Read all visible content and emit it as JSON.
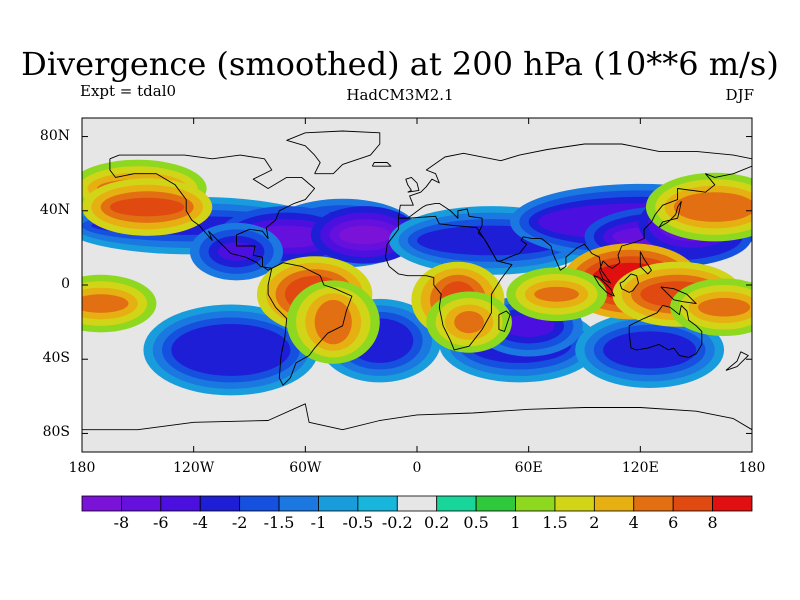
{
  "title": "Divergence (smoothed) at 200 hPa (10**6 m/s)",
  "subtitle_left": "Expt = tdal0",
  "subtitle_center": "HadCM3M2.1",
  "subtitle_right": "DJF",
  "map": {
    "projection": "cylindrical-equidistant",
    "lon_range": [
      -180,
      180
    ],
    "lat_range": [
      -90,
      90
    ],
    "background": "#e6e6e6",
    "lat_ticks": [
      {
        "value": 80,
        "label": "80N"
      },
      {
        "value": 40,
        "label": "40N"
      },
      {
        "value": 0,
        "label": "0"
      },
      {
        "value": -40,
        "label": "40S"
      },
      {
        "value": -80,
        "label": "80S"
      }
    ],
    "lon_ticks": [
      {
        "value": -180,
        "label": "180"
      },
      {
        "value": -120,
        "label": "120W"
      },
      {
        "value": -60,
        "label": "60W"
      },
      {
        "value": 0,
        "label": "0"
      },
      {
        "value": 60,
        "label": "60E"
      },
      {
        "value": 120,
        "label": "120E"
      },
      {
        "value": 180,
        "label": "180"
      }
    ]
  },
  "colorbar": {
    "colors": [
      "#7a12d8",
      "#6510dc",
      "#4b10e0",
      "#1e1ed6",
      "#1550de",
      "#1a78e0",
      "#199cdc",
      "#18b6dc",
      "#e6e6e6",
      "#18d69a",
      "#30c83c",
      "#8ed820",
      "#d2d418",
      "#e6b012",
      "#e27012",
      "#e04a10",
      "#e01010"
    ],
    "labels": [
      "-8",
      "-6",
      "-4",
      "-2",
      "-1.5",
      "-1",
      "-0.5",
      "-0.2",
      "0.2",
      "0.5",
      "1",
      "1.5",
      "2",
      "4",
      "6",
      "8"
    ]
  },
  "fields": [
    {
      "lon": -120,
      "lat": 32,
      "rx": 55,
      "ry": 5,
      "cls": 3
    },
    {
      "lon": -40,
      "lat": 28,
      "rx": 26,
      "ry": 8,
      "cls": 2
    },
    {
      "lon": -70,
      "lat": 26,
      "rx": 22,
      "ry": 6,
      "cls": 1
    },
    {
      "lon": -28,
      "lat": 27,
      "rx": 14,
      "ry": 5,
      "cls": 0
    },
    {
      "lon": 40,
      "lat": 24,
      "rx": 40,
      "ry": 8,
      "cls": 3
    },
    {
      "lon": 120,
      "lat": 34,
      "rx": 55,
      "ry": 10,
      "cls": 2
    },
    {
      "lon": 135,
      "lat": 26,
      "rx": 30,
      "ry": 6,
      "cls": 1
    },
    {
      "lon": 148,
      "lat": 33,
      "rx": 14,
      "ry": 6,
      "cls": 0
    },
    {
      "lon": -100,
      "lat": -35,
      "rx": 32,
      "ry": 14,
      "cls": 3
    },
    {
      "lon": -20,
      "lat": -30,
      "rx": 18,
      "ry": 12,
      "cls": 3
    },
    {
      "lon": 55,
      "lat": -32,
      "rx": 28,
      "ry": 10,
      "cls": 3
    },
    {
      "lon": 125,
      "lat": -35,
      "rx": 25,
      "ry": 10,
      "cls": 3
    },
    {
      "lon": 60,
      "lat": -22,
      "rx": 14,
      "ry": 6,
      "cls": 2
    },
    {
      "lon": -97,
      "lat": 18,
      "rx": 10,
      "ry": 5,
      "cls": 2
    },
    {
      "lon": -150,
      "lat": 52,
      "rx": 22,
      "ry": 5,
      "cls": 14
    },
    {
      "lon": -145,
      "lat": 42,
      "rx": 20,
      "ry": 5,
      "cls": 15
    },
    {
      "lon": 160,
      "lat": 42,
      "rx": 22,
      "ry": 8,
      "cls": 14
    },
    {
      "lon": -170,
      "lat": -10,
      "rx": 15,
      "ry": 5,
      "cls": 14
    },
    {
      "lon": -55,
      "lat": -5,
      "rx": 16,
      "ry": 10,
      "cls": 15
    },
    {
      "lon": -45,
      "lat": -20,
      "rx": 10,
      "ry": 12,
      "cls": 14
    },
    {
      "lon": 22,
      "lat": -8,
      "rx": 10,
      "ry": 10,
      "cls": 15
    },
    {
      "lon": 28,
      "lat": -20,
      "rx": 8,
      "ry": 6,
      "cls": 14
    },
    {
      "lon": 115,
      "lat": 2,
      "rx": 22,
      "ry": 10,
      "cls": 16
    },
    {
      "lon": 140,
      "lat": -5,
      "rx": 20,
      "ry": 7,
      "cls": 15
    },
    {
      "lon": 165,
      "lat": -12,
      "rx": 14,
      "ry": 5,
      "cls": 14
    },
    {
      "lon": 75,
      "lat": -5,
      "rx": 12,
      "ry": 4,
      "cls": 14
    }
  ],
  "coast": [
    [
      [
        -165,
        68
      ],
      [
        -160,
        70
      ],
      [
        -140,
        70
      ],
      [
        -125,
        70
      ],
      [
        -110,
        68
      ],
      [
        -95,
        70
      ],
      [
        -82,
        68
      ],
      [
        -78,
        62
      ],
      [
        -88,
        57
      ],
      [
        -80,
        52
      ],
      [
        -70,
        58
      ],
      [
        -62,
        58
      ],
      [
        -55,
        52
      ],
      [
        -60,
        46
      ],
      [
        -66,
        44
      ],
      [
        -70,
        42
      ],
      [
        -74,
        40
      ],
      [
        -76,
        35
      ],
      [
        -81,
        31
      ],
      [
        -80,
        25
      ],
      [
        -83,
        29
      ],
      [
        -90,
        30
      ],
      [
        -97,
        27
      ],
      [
        -97,
        21
      ],
      [
        -90,
        21
      ],
      [
        -87,
        21
      ],
      [
        -88,
        16
      ],
      [
        -83,
        15
      ],
      [
        -83,
        10
      ],
      [
        -80,
        8
      ],
      [
        -78,
        9
      ],
      [
        -84,
        10
      ],
      [
        -86,
        12
      ],
      [
        -92,
        15
      ],
      [
        -100,
        17
      ],
      [
        -106,
        23
      ],
      [
        -112,
        29
      ],
      [
        -110,
        24
      ],
      [
        -117,
        32
      ],
      [
        -121,
        35
      ],
      [
        -124,
        40
      ],
      [
        -124,
        46
      ],
      [
        -130,
        54
      ],
      [
        -140,
        60
      ],
      [
        -152,
        60
      ],
      [
        -162,
        58
      ],
      [
        -165,
        62
      ],
      [
        -165,
        68
      ]
    ],
    [
      [
        -78,
        9
      ],
      [
        -72,
        12
      ],
      [
        -62,
        10
      ],
      [
        -52,
        5
      ],
      [
        -50,
        0
      ],
      [
        -44,
        -2
      ],
      [
        -35,
        -6
      ],
      [
        -38,
        -14
      ],
      [
        -40,
        -22
      ],
      [
        -48,
        -26
      ],
      [
        -55,
        -34
      ],
      [
        -58,
        -38
      ],
      [
        -65,
        -42
      ],
      [
        -68,
        -50
      ],
      [
        -72,
        -54
      ],
      [
        -74,
        -50
      ],
      [
        -73,
        -38
      ],
      [
        -71,
        -28
      ],
      [
        -70,
        -18
      ],
      [
        -76,
        -12
      ],
      [
        -80,
        -5
      ],
      [
        -80,
        0
      ],
      [
        -78,
        9
      ]
    ],
    [
      [
        -55,
        60
      ],
      [
        -45,
        60
      ],
      [
        -40,
        65
      ],
      [
        -25,
        70
      ],
      [
        -20,
        76
      ],
      [
        -20,
        82
      ],
      [
        -40,
        83
      ],
      [
        -60,
        82
      ],
      [
        -70,
        78
      ],
      [
        -60,
        75
      ],
      [
        -55,
        70
      ],
      [
        -52,
        66
      ],
      [
        -55,
        60
      ]
    ],
    [
      [
        -10,
        36
      ],
      [
        -5,
        36
      ],
      [
        10,
        37
      ],
      [
        12,
        33
      ],
      [
        20,
        32
      ],
      [
        32,
        31
      ],
      [
        34,
        28
      ],
      [
        38,
        22
      ],
      [
        43,
        13
      ],
      [
        51,
        11
      ],
      [
        45,
        3
      ],
      [
        40,
        -5
      ],
      [
        40,
        -15
      ],
      [
        35,
        -24
      ],
      [
        28,
        -33
      ],
      [
        20,
        -35
      ],
      [
        18,
        -30
      ],
      [
        14,
        -22
      ],
      [
        12,
        -12
      ],
      [
        13,
        -5
      ],
      [
        9,
        0
      ],
      [
        9,
        4
      ],
      [
        5,
        5
      ],
      [
        -5,
        5
      ],
      [
        -10,
        6
      ],
      [
        -15,
        10
      ],
      [
        -17,
        15
      ],
      [
        -16,
        22
      ],
      [
        -10,
        30
      ],
      [
        -10,
        36
      ]
    ],
    [
      [
        -10,
        36
      ],
      [
        -9,
        43
      ],
      [
        -2,
        43
      ],
      [
        -4,
        48
      ],
      [
        2,
        50
      ],
      [
        5,
        53
      ],
      [
        8,
        57
      ],
      [
        12,
        55
      ],
      [
        10,
        60
      ],
      [
        5,
        62
      ],
      [
        15,
        69
      ],
      [
        25,
        71
      ],
      [
        40,
        68
      ],
      [
        45,
        67
      ],
      [
        55,
        70
      ],
      [
        70,
        73
      ],
      [
        90,
        76
      ],
      [
        110,
        76
      ],
      [
        130,
        72
      ],
      [
        150,
        72
      ],
      [
        170,
        70
      ],
      [
        180,
        68
      ],
      [
        180,
        64
      ],
      [
        170,
        60
      ],
      [
        160,
        58
      ],
      [
        155,
        60
      ],
      [
        160,
        54
      ],
      [
        155,
        50
      ],
      [
        140,
        52
      ],
      [
        140,
        46
      ],
      [
        132,
        43
      ],
      [
        128,
        38
      ],
      [
        126,
        34
      ],
      [
        122,
        30
      ],
      [
        122,
        25
      ],
      [
        117,
        23
      ],
      [
        110,
        21
      ],
      [
        108,
        16
      ],
      [
        109,
        12
      ],
      [
        105,
        9
      ],
      [
        103,
        10
      ],
      [
        100,
        13
      ],
      [
        98,
        8
      ],
      [
        100,
        3
      ],
      [
        104,
        1
      ],
      [
        99,
        8
      ],
      [
        98,
        15
      ],
      [
        94,
        17
      ],
      [
        90,
        22
      ],
      [
        88,
        21
      ],
      [
        86,
        20
      ],
      [
        80,
        15
      ],
      [
        80,
        10
      ],
      [
        77,
        8
      ],
      [
        73,
        17
      ],
      [
        72,
        21
      ],
      [
        67,
        25
      ],
      [
        62,
        25
      ],
      [
        57,
        26
      ],
      [
        56,
        24
      ],
      [
        59,
        22
      ],
      [
        55,
        17
      ],
      [
        52,
        16
      ],
      [
        45,
        13
      ],
      [
        43,
        13
      ],
      [
        36,
        25
      ],
      [
        33,
        28
      ],
      [
        35,
        32
      ],
      [
        35,
        36
      ],
      [
        28,
        37
      ],
      [
        27,
        41
      ],
      [
        22,
        40
      ],
      [
        22,
        36
      ],
      [
        18,
        40
      ],
      [
        12,
        44
      ],
      [
        10,
        44
      ],
      [
        5,
        43
      ],
      [
        3,
        42
      ],
      [
        -5,
        36
      ],
      [
        -10,
        36
      ]
    ],
    [
      [
        114,
        -22
      ],
      [
        114,
        -26
      ],
      [
        115,
        -34
      ],
      [
        118,
        -35
      ],
      [
        124,
        -34
      ],
      [
        130,
        -32
      ],
      [
        135,
        -35
      ],
      [
        138,
        -34
      ],
      [
        141,
        -38
      ],
      [
        146,
        -39
      ],
      [
        150,
        -37
      ],
      [
        153,
        -32
      ],
      [
        153,
        -25
      ],
      [
        150,
        -22
      ],
      [
        146,
        -19
      ],
      [
        145,
        -14
      ],
      [
        142,
        -11
      ],
      [
        141,
        -16
      ],
      [
        136,
        -12
      ],
      [
        132,
        -11
      ],
      [
        129,
        -15
      ],
      [
        122,
        -18
      ],
      [
        114,
        -22
      ]
    ],
    [
      [
        95,
        5
      ],
      [
        98,
        4
      ],
      [
        104,
        -2
      ],
      [
        106,
        -6
      ],
      [
        102,
        -4
      ],
      [
        98,
        0
      ],
      [
        95,
        5
      ]
    ],
    [
      [
        109,
        1
      ],
      [
        110,
        -2
      ],
      [
        114,
        -4
      ],
      [
        116,
        -3
      ],
      [
        119,
        1
      ],
      [
        118,
        5
      ],
      [
        115,
        6
      ],
      [
        111,
        2
      ],
      [
        109,
        1
      ]
    ],
    [
      [
        131,
        -1
      ],
      [
        138,
        -2
      ],
      [
        145,
        -5
      ],
      [
        150,
        -10
      ],
      [
        143,
        -9
      ],
      [
        138,
        -8
      ],
      [
        131,
        -1
      ]
    ],
    [
      [
        44,
        -16
      ],
      [
        48,
        -14
      ],
      [
        50,
        -16
      ],
      [
        47,
        -25
      ],
      [
        44,
        -24
      ],
      [
        44,
        -16
      ]
    ],
    [
      [
        -180,
        -78
      ],
      [
        -150,
        -78
      ],
      [
        -120,
        -74
      ],
      [
        -80,
        -73
      ],
      [
        -60,
        -64
      ],
      [
        -58,
        -74
      ],
      [
        -40,
        -78
      ],
      [
        -20,
        -73
      ],
      [
        0,
        -70
      ],
      [
        30,
        -69
      ],
      [
        60,
        -67
      ],
      [
        90,
        -66
      ],
      [
        120,
        -66
      ],
      [
        150,
        -68
      ],
      [
        170,
        -72
      ],
      [
        180,
        -78
      ]
    ],
    [
      [
        130,
        31
      ],
      [
        132,
        34
      ],
      [
        136,
        35
      ],
      [
        140,
        36
      ],
      [
        141,
        40
      ],
      [
        142,
        45
      ],
      [
        140,
        42
      ],
      [
        139,
        38
      ],
      [
        135,
        34
      ],
      [
        130,
        31
      ]
    ],
    [
      [
        -5,
        50
      ],
      [
        1,
        51
      ],
      [
        0,
        55
      ],
      [
        -3,
        58
      ],
      [
        -6,
        57
      ],
      [
        -5,
        54
      ],
      [
        -3,
        51
      ],
      [
        -5,
        50
      ]
    ],
    [
      [
        -24,
        64
      ],
      [
        -14,
        64
      ],
      [
        -16,
        66
      ],
      [
        -23,
        66
      ],
      [
        -24,
        64
      ]
    ],
    [
      [
        166,
        -46
      ],
      [
        172,
        -41
      ],
      [
        174,
        -36
      ],
      [
        178,
        -38
      ],
      [
        172,
        -44
      ],
      [
        166,
        -46
      ]
    ],
    [
      [
        120,
        18
      ],
      [
        122,
        14
      ],
      [
        126,
        8
      ],
      [
        124,
        6
      ],
      [
        120,
        10
      ],
      [
        120,
        18
      ]
    ]
  ]
}
